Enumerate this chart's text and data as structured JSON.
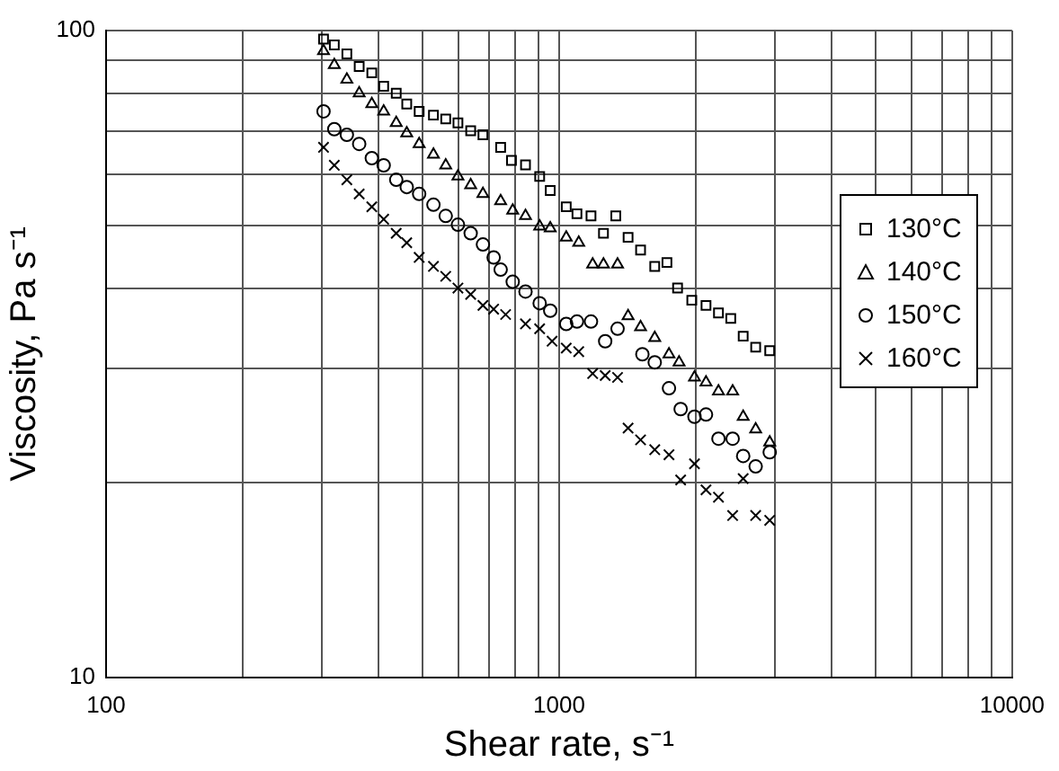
{
  "chart_data": {
    "type": "scatter",
    "xlabel": "Shear rate, s⁻¹",
    "ylabel": "Viscosity, Pa s⁻¹",
    "log": "xy",
    "grid": true,
    "legend": "right",
    "xlim": [
      100,
      10000
    ],
    "ylim": [
      10,
      100
    ],
    "xticks": [
      100,
      {
        "value": 200,
        "label": null
      },
      {
        "value": 300,
        "label": null
      },
      {
        "value": 400,
        "label": null
      },
      {
        "value": 500,
        "label": null
      },
      {
        "value": 600,
        "label": null
      },
      {
        "value": 700,
        "label": null
      },
      {
        "value": 800,
        "label": null
      },
      {
        "value": 900,
        "label": null
      },
      1000,
      {
        "value": 2000,
        "label": null
      },
      {
        "value": 3000,
        "label": null
      },
      {
        "value": 4000,
        "label": null
      },
      {
        "value": 5000,
        "label": null
      },
      {
        "value": 6000,
        "label": null
      },
      {
        "value": 7000,
        "label": null
      },
      {
        "value": 8000,
        "label": null
      },
      {
        "value": 9000,
        "label": null
      },
      10000
    ],
    "yticks": [
      10,
      {
        "value": 20,
        "label": null
      },
      {
        "value": 30,
        "label": null
      },
      {
        "value": 40,
        "label": null
      },
      {
        "value": 50,
        "label": null
      },
      {
        "value": 60,
        "label": null
      },
      {
        "value": 70,
        "label": null
      },
      {
        "value": 80,
        "label": null
      },
      {
        "value": 90,
        "label": null
      },
      100
    ],
    "series": [
      {
        "name": "130°C",
        "color": "#000000",
        "marker": "square",
        "x": [
          302,
          319,
          340,
          362,
          386,
          410,
          437,
          461,
          491,
          528,
          562,
          598,
          638,
          679,
          743,
          785,
          843,
          906,
          956,
          1037,
          1095,
          1176,
          1253,
          1334,
          1420,
          1513,
          1626,
          1730,
          1826,
          1963,
          2110,
          2248,
          2393,
          2549,
          2716,
          2917
        ],
        "values": [
          97,
          95,
          92,
          88,
          86,
          82,
          80,
          77,
          75,
          74,
          73,
          72,
          70,
          69,
          66,
          63,
          62,
          59.5,
          56.6,
          53.4,
          52.1,
          51.7,
          48.6,
          51.7,
          47.9,
          45.8,
          43.2,
          43.8,
          40,
          38.3,
          37.6,
          36.6,
          35.9,
          33.7,
          32.4,
          32
        ]
      },
      {
        "name": "140°C",
        "color": "#000000",
        "marker": "triangle",
        "x": [
          302,
          319,
          340,
          362,
          386,
          410,
          437,
          461,
          491,
          528,
          562,
          598,
          638,
          679,
          743,
          790,
          843,
          906,
          956,
          1037,
          1105,
          1186,
          1253,
          1346,
          1420,
          1513,
          1626,
          1748,
          1840,
          1990,
          2110,
          2248,
          2416,
          2549,
          2716,
          2917
        ],
        "values": [
          93,
          88.5,
          84,
          80,
          77,
          75,
          72,
          69.4,
          66.8,
          64.3,
          61.9,
          59.5,
          57.7,
          55.9,
          54.5,
          52.7,
          51.7,
          49.8,
          49.5,
          47.9,
          47,
          43.5,
          43.5,
          43.5,
          36.2,
          34.8,
          33.5,
          31.6,
          30.7,
          29.1,
          28.6,
          27.7,
          27.7,
          25.3,
          24.2,
          23.1
        ]
      },
      {
        "name": "150°C",
        "color": "#000000",
        "marker": "circle",
        "x": [
          302,
          319,
          340,
          362,
          386,
          410,
          437,
          461,
          491,
          528,
          562,
          598,
          638,
          679,
          717,
          743,
          790,
          843,
          906,
          956,
          1037,
          1095,
          1176,
          1264,
          1346,
          1527,
          1626,
          1748,
          1855,
          1990,
          2110,
          2248,
          2416,
          2549,
          2716,
          2917
        ],
        "values": [
          75,
          70.4,
          69,
          66.8,
          63.5,
          61.9,
          58.8,
          57.3,
          55.9,
          53.8,
          51.7,
          50.1,
          48.6,
          46.7,
          44.6,
          42.7,
          40.9,
          39.5,
          37.9,
          36.9,
          35.2,
          35.5,
          35.5,
          33.1,
          34.6,
          31.6,
          30.7,
          28,
          26,
          25.3,
          25.5,
          23.4,
          23.4,
          22,
          21.2,
          22.3
        ]
      },
      {
        "name": "160°C",
        "color": "#000000",
        "marker": "cross",
        "x": [
          302,
          319,
          340,
          362,
          386,
          410,
          437,
          461,
          491,
          528,
          562,
          598,
          638,
          679,
          717,
          762,
          843,
          906,
          965,
          1037,
          1105,
          1186,
          1264,
          1346,
          1420,
          1513,
          1626,
          1748,
          1855,
          1990,
          2110,
          2248,
          2416,
          2549,
          2716,
          2917
        ],
        "values": [
          66,
          61.9,
          58.8,
          55.9,
          53.4,
          51.1,
          48.6,
          47,
          44.6,
          43.2,
          41.7,
          40,
          39.1,
          37.6,
          37.1,
          36.4,
          35.2,
          34.6,
          33.1,
          32.3,
          31.9,
          29.5,
          29.3,
          29.1,
          24.3,
          23.3,
          22.5,
          22.1,
          20.2,
          21.4,
          19.5,
          19,
          17.8,
          20.3,
          17.8,
          17.5
        ]
      }
    ]
  }
}
